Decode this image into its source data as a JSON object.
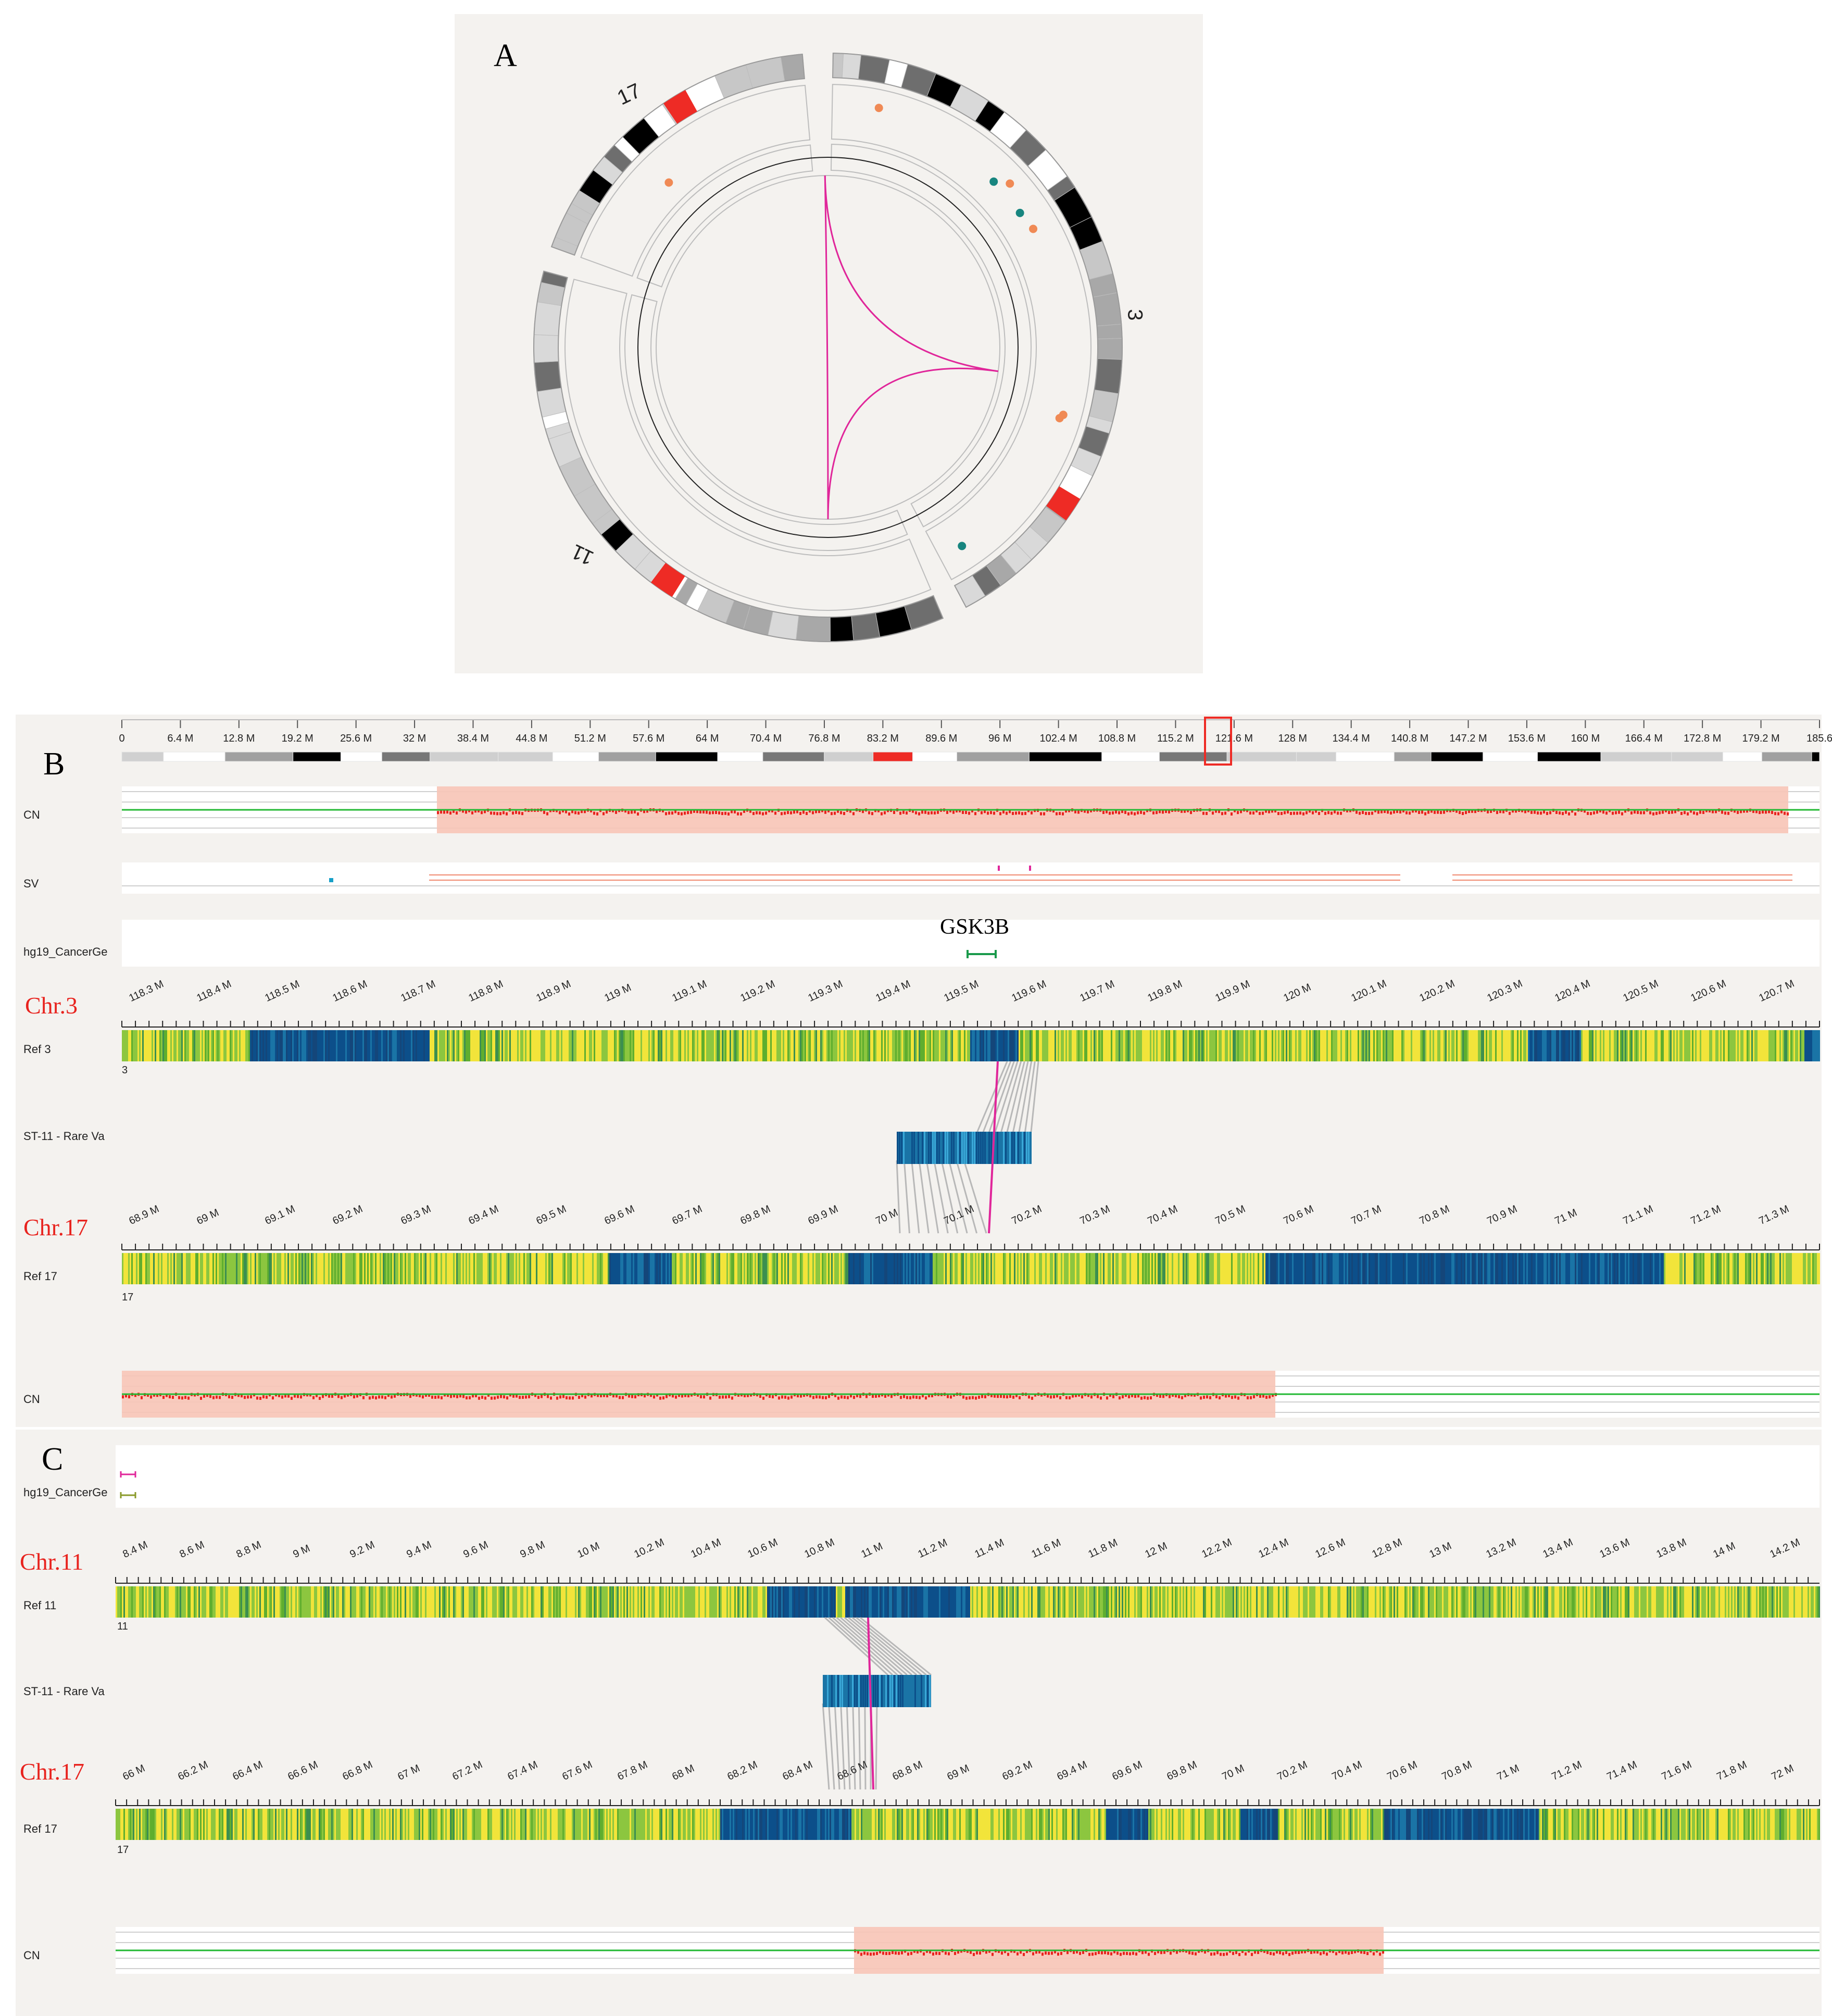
{
  "panels": {
    "a": "A",
    "b": "B",
    "c": "C"
  },
  "circos": {
    "chromosomes": [
      "17",
      "3",
      "11"
    ],
    "colors": {
      "link": "#e0269a",
      "dot_orange": "#f08a55",
      "dot_teal": "#17857f",
      "band_red": "#ee2b25"
    }
  },
  "panel_b": {
    "ideogram_ticks": [
      "0",
      "6.4 M",
      "12.8 M",
      "19.2 M",
      "25.6 M",
      "32 M",
      "38.4 M",
      "44.8 M",
      "51.2 M",
      "57.6 M",
      "64 M",
      "70.4 M",
      "76.8 M",
      "83.2 M",
      "89.6 M",
      "96 M",
      "102.4 M",
      "108.8 M",
      "115.2 M",
      "121.6 M",
      "128 M",
      "134.4 M",
      "140.8 M",
      "147.2 M",
      "153.6 M",
      "160 M",
      "166.4 M",
      "172.8 M",
      "179.2 M",
      "185.6"
    ],
    "cn_label": "CN",
    "sv_label": "SV",
    "cancer_gene_label": "hg19_CancerGe",
    "gene_name": "GSK3B",
    "chr_top": "Chr.3",
    "ref_top_label": "Ref 3",
    "ref_top_num": "3",
    "ref_top_ticks": [
      "118.3 M",
      "118.4 M",
      "118.5 M",
      "118.6 M",
      "118.7 M",
      "118.8 M",
      "118.9 M",
      "119 M",
      "119.1 M",
      "119.2 M",
      "119.3 M",
      "119.4 M",
      "119.5 M",
      "119.6 M",
      "119.7 M",
      "119.8 M",
      "119.9 M",
      "120 M",
      "120.1 M",
      "120.2 M",
      "120.3 M",
      "120.4 M",
      "120.5 M",
      "120.6 M",
      "120.7 M"
    ],
    "sample_label": "ST-11 - Rare Va",
    "chr_bottom": "Chr.17",
    "ref_bottom_label": "Ref 17",
    "ref_bottom_num": "17",
    "ref_bottom_ticks": [
      "68.9 M",
      "69 M",
      "69.1 M",
      "69.2 M",
      "69.3 M",
      "69.4 M",
      "69.5 M",
      "69.6 M",
      "69.7 M",
      "69.8 M",
      "69.9 M",
      "70 M",
      "70.1 M",
      "70.2 M",
      "70.3 M",
      "70.4 M",
      "70.5 M",
      "70.6 M",
      "70.7 M",
      "70.8 M",
      "70.9 M",
      "71 M",
      "71.1 M",
      "71.2 M",
      "71.3 M"
    ],
    "cn_bottom_label": "CN"
  },
  "panel_c": {
    "cancer_gene_label": "hg19_CancerGe",
    "chr_top": "Chr.11",
    "ref_top_label": "Ref 11",
    "ref_top_num": "11",
    "ref_top_ticks": [
      "8.4 M",
      "8.6 M",
      "8.8 M",
      "9 M",
      "9.2 M",
      "9.4 M",
      "9.6 M",
      "9.8 M",
      "10 M",
      "10.2 M",
      "10.4 M",
      "10.6 M",
      "10.8 M",
      "11 M",
      "11.2 M",
      "11.4 M",
      "11.6 M",
      "11.8 M",
      "12 M",
      "12.2 M",
      "12.4 M",
      "12.6 M",
      "12.8 M",
      "13 M",
      "13.2 M",
      "13.4 M",
      "13.6 M",
      "13.8 M",
      "14 M",
      "14.2 M"
    ],
    "sample_label": "ST-11 - Rare Va",
    "chr_bottom": "Chr.17",
    "ref_bottom_label": "Ref 17",
    "ref_bottom_num": "17",
    "ref_bottom_ticks": [
      "66 M",
      "66.2 M",
      "66.4 M",
      "66.6 M",
      "66.8 M",
      "67 M",
      "67.2 M",
      "67.4 M",
      "67.6 M",
      "67.8 M",
      "68 M",
      "68.2 M",
      "68.4 M",
      "68.6 M",
      "68.8 M",
      "69 M",
      "69.2 M",
      "69.4 M",
      "69.6 M",
      "69.8 M",
      "70 M",
      "70.2 M",
      "70.4 M",
      "70.6 M",
      "70.8 M",
      "71 M",
      "71.2 M",
      "71.4 M",
      "71.6 M",
      "71.8 M",
      "72 M"
    ],
    "cn_label": "CN"
  }
}
